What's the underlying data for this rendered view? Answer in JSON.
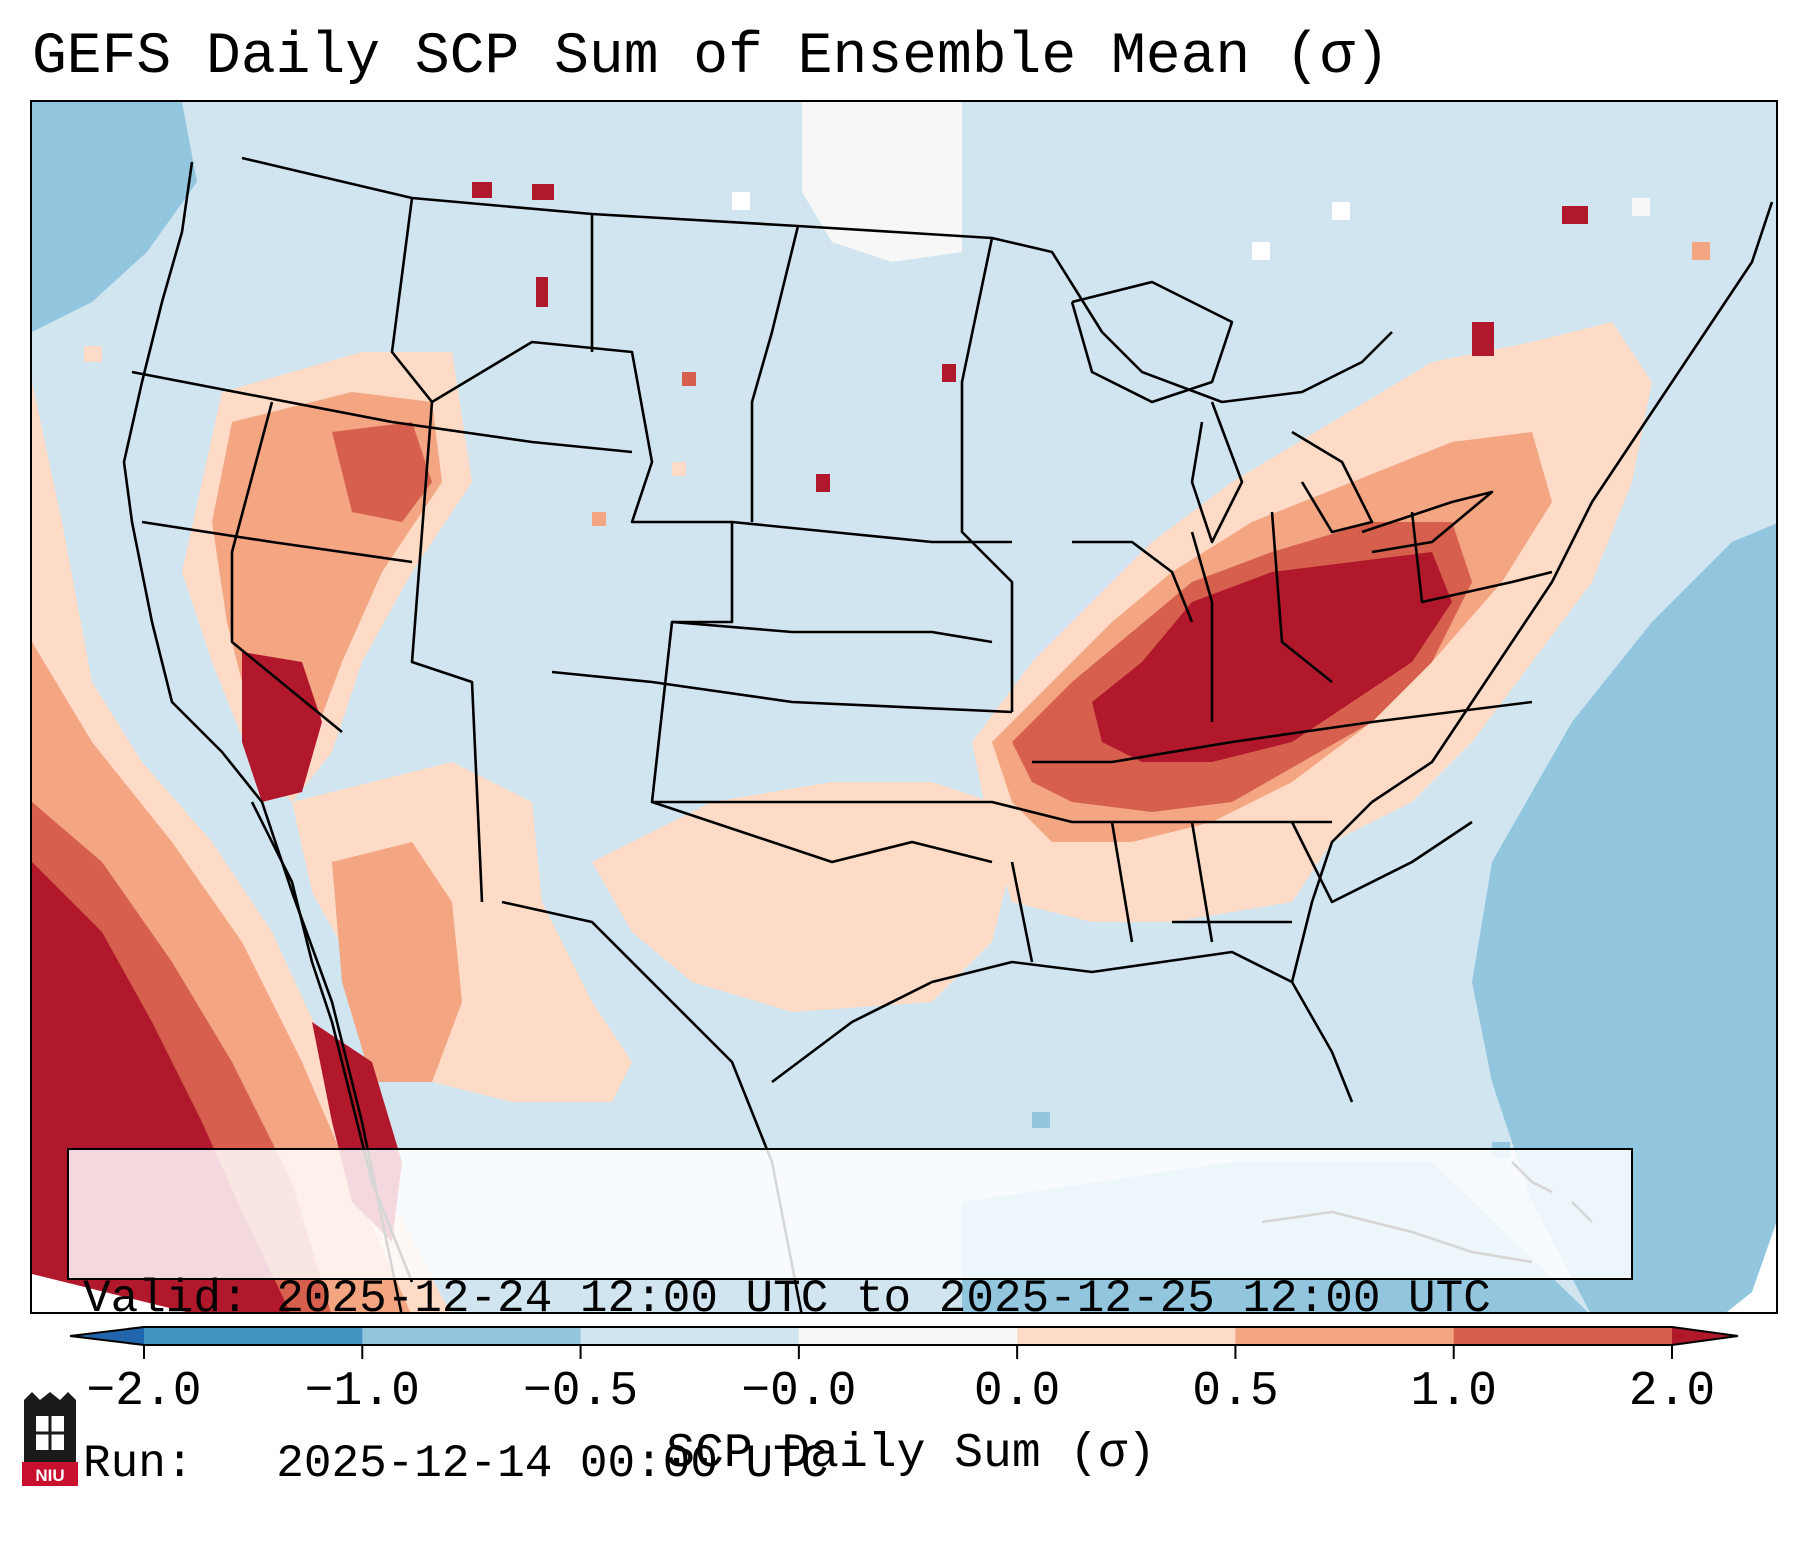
{
  "title": "GEFS Daily SCP Sum of Ensemble Mean (σ)",
  "info": {
    "valid_label": "Valid:",
    "valid_value": "2025-12-24 12:00 UTC to 2025-12-25 12:00 UTC",
    "run_label": "Run:",
    "run_value": "2025-12-14 00:00 UTC"
  },
  "logo": {
    "text": "NIU",
    "name": "Northern Illinois University"
  },
  "map_data": {
    "projection": "lambert-conformal-conus",
    "variable": "SCP Daily Sum",
    "units": "σ",
    "colorbar": {
      "label": "SCP Daily Sum (σ)",
      "tick_labels": [
        "−2.0",
        "−1.0",
        "−0.5",
        "−0.0",
        "0.0",
        "0.5",
        "1.0",
        "2.0"
      ],
      "bins": [
        {
          "range": "< -2.0",
          "color": "#2166ac"
        },
        {
          "range": "-2.0 to -1.0",
          "color": "#4393c3"
        },
        {
          "range": "-1.0 to -0.5",
          "color": "#92c5de"
        },
        {
          "range": "-0.5 to -0.0",
          "color": "#d1e5f0"
        },
        {
          "range": "-0.0 to 0.0",
          "color": "#f7f7f7"
        },
        {
          "range": "0.0 to 0.5",
          "color": "#fddbc7"
        },
        {
          "range": "0.5 to 1.0",
          "color": "#f4a582"
        },
        {
          "range": "1.0 to 2.0",
          "color": "#d6604d"
        },
        {
          "range": "> 2.0",
          "color": "#b2182b"
        }
      ]
    },
    "highlights": [
      {
        "region": "Ohio Valley / Indiana / Ohio / Kentucky / West Virginia",
        "category": "> 2.0"
      },
      {
        "region": "Tennessee / Mid-South",
        "category": "1.0 to 2.0"
      },
      {
        "region": "Great Lakes / Northeast",
        "category": "0.5 to 2.0"
      },
      {
        "region": "Great Basin / Desert Southwest",
        "category": "0.5 to 2.0"
      },
      {
        "region": "Eastern Pacific off Baja California",
        "category": "> 2.0"
      },
      {
        "region": "Gulf of Mexico / Western Atlantic",
        "category": "-1.0 to -0.5"
      }
    ]
  }
}
